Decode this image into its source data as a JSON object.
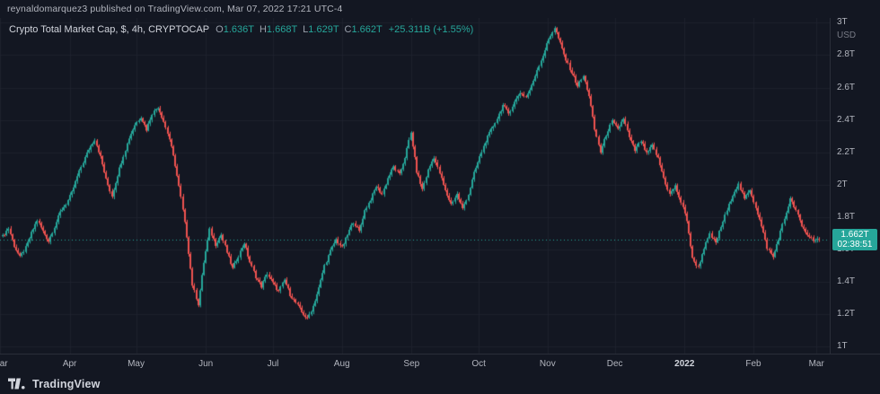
{
  "topbar": {
    "text": "reynaldomarquez3 published on TradingView.com, Mar 07, 2022 17:21 UTC-4"
  },
  "legend": {
    "title": "Crypto Total Market Cap, $, 4h, CRYPTOCAP",
    "ohlc": [
      {
        "k": "O",
        "v": "1.636T"
      },
      {
        "k": "H",
        "v": "1.668T"
      },
      {
        "k": "L",
        "v": "1.629T"
      },
      {
        "k": "C",
        "v": "1.662T"
      }
    ],
    "change": "+25.311B (+1.55%)"
  },
  "footer": {
    "brand": "TradingView"
  },
  "colors": {
    "background": "#131722",
    "grid": "#1e222d",
    "up": "#26a69a",
    "down": "#ef5350",
    "text_primary": "#d1d4dc",
    "text_muted": "#b2b5be",
    "text_dim": "#787b86",
    "axis_border": "#2a2e39",
    "last_price_bg": "#26a69a"
  },
  "chart_data": {
    "type": "candlestick",
    "title": "Crypto Total Market Cap",
    "symbol": "CRYPTOCAP",
    "currency": "$",
    "interval": "4h",
    "y_unit": "USD",
    "ylim": [
      0.955,
      3.03
    ],
    "y_ticks": [
      {
        "v": 3.0,
        "label": "3T"
      },
      {
        "v": 2.8,
        "label": "2.8T"
      },
      {
        "v": 2.6,
        "label": "2.6T"
      },
      {
        "v": 2.4,
        "label": "2.4T"
      },
      {
        "v": 2.2,
        "label": "2.2T"
      },
      {
        "v": 2.0,
        "label": "2T"
      },
      {
        "v": 1.8,
        "label": "1.8T"
      },
      {
        "v": 1.6,
        "label": "1.6T"
      },
      {
        "v": 1.4,
        "label": "1.4T"
      },
      {
        "v": 1.2,
        "label": "1.2T"
      },
      {
        "v": 1.0,
        "label": "1T"
      }
    ],
    "x_ticks": [
      {
        "pos": 0.0,
        "label": "Mar",
        "strong": false
      },
      {
        "pos": 0.084,
        "label": "Apr",
        "strong": false
      },
      {
        "pos": 0.164,
        "label": "May",
        "strong": false
      },
      {
        "pos": 0.248,
        "label": "Jun",
        "strong": false
      },
      {
        "pos": 0.329,
        "label": "Jul",
        "strong": false
      },
      {
        "pos": 0.412,
        "label": "Aug",
        "strong": false
      },
      {
        "pos": 0.496,
        "label": "Sep",
        "strong": false
      },
      {
        "pos": 0.577,
        "label": "Oct",
        "strong": false
      },
      {
        "pos": 0.66,
        "label": "Nov",
        "strong": false
      },
      {
        "pos": 0.741,
        "label": "Dec",
        "strong": false
      },
      {
        "pos": 0.825,
        "label": "2022",
        "strong": true
      },
      {
        "pos": 0.908,
        "label": "Feb",
        "strong": false
      },
      {
        "pos": 0.984,
        "label": "Mar",
        "strong": false
      }
    ],
    "ohlc_display": {
      "open": "1.636T",
      "high": "1.668T",
      "low": "1.629T",
      "close": "1.662T",
      "change": "+25.311B (+1.55%)"
    },
    "last_price": {
      "value": 1.662,
      "label": "1.662T",
      "countdown": "02:38:51"
    },
    "x_range": [
      "Mar 2021",
      "Mar 2022"
    ],
    "series_close_T": [
      1.68,
      1.73,
      1.62,
      1.55,
      1.61,
      1.7,
      1.78,
      1.71,
      1.65,
      1.74,
      1.83,
      1.88,
      1.95,
      2.05,
      2.14,
      2.22,
      2.28,
      2.17,
      2.03,
      1.93,
      2.06,
      2.18,
      2.29,
      2.37,
      2.42,
      2.34,
      2.44,
      2.48,
      2.39,
      2.28,
      2.12,
      1.92,
      1.68,
      1.38,
      1.26,
      1.52,
      1.72,
      1.63,
      1.69,
      1.58,
      1.48,
      1.56,
      1.64,
      1.52,
      1.43,
      1.37,
      1.45,
      1.39,
      1.34,
      1.41,
      1.32,
      1.27,
      1.21,
      1.17,
      1.25,
      1.36,
      1.5,
      1.59,
      1.66,
      1.61,
      1.69,
      1.77,
      1.71,
      1.84,
      1.91,
      1.99,
      1.94,
      2.04,
      2.11,
      2.06,
      2.17,
      2.32,
      2.08,
      1.97,
      2.09,
      2.17,
      2.07,
      1.96,
      1.88,
      1.94,
      1.85,
      1.94,
      2.07,
      2.17,
      2.27,
      2.34,
      2.41,
      2.49,
      2.44,
      2.51,
      2.57,
      2.54,
      2.61,
      2.71,
      2.8,
      2.9,
      2.97,
      2.87,
      2.77,
      2.69,
      2.61,
      2.67,
      2.55,
      2.34,
      2.2,
      2.31,
      2.39,
      2.34,
      2.41,
      2.29,
      2.21,
      2.27,
      2.19,
      2.24,
      2.16,
      2.04,
      1.94,
      1.99,
      1.89,
      1.78,
      1.54,
      1.49,
      1.61,
      1.69,
      1.64,
      1.74,
      1.84,
      1.94,
      2.0,
      1.91,
      1.97,
      1.86,
      1.74,
      1.61,
      1.55,
      1.67,
      1.79,
      1.91,
      1.84,
      1.74,
      1.69,
      1.66,
      1.662
    ]
  }
}
